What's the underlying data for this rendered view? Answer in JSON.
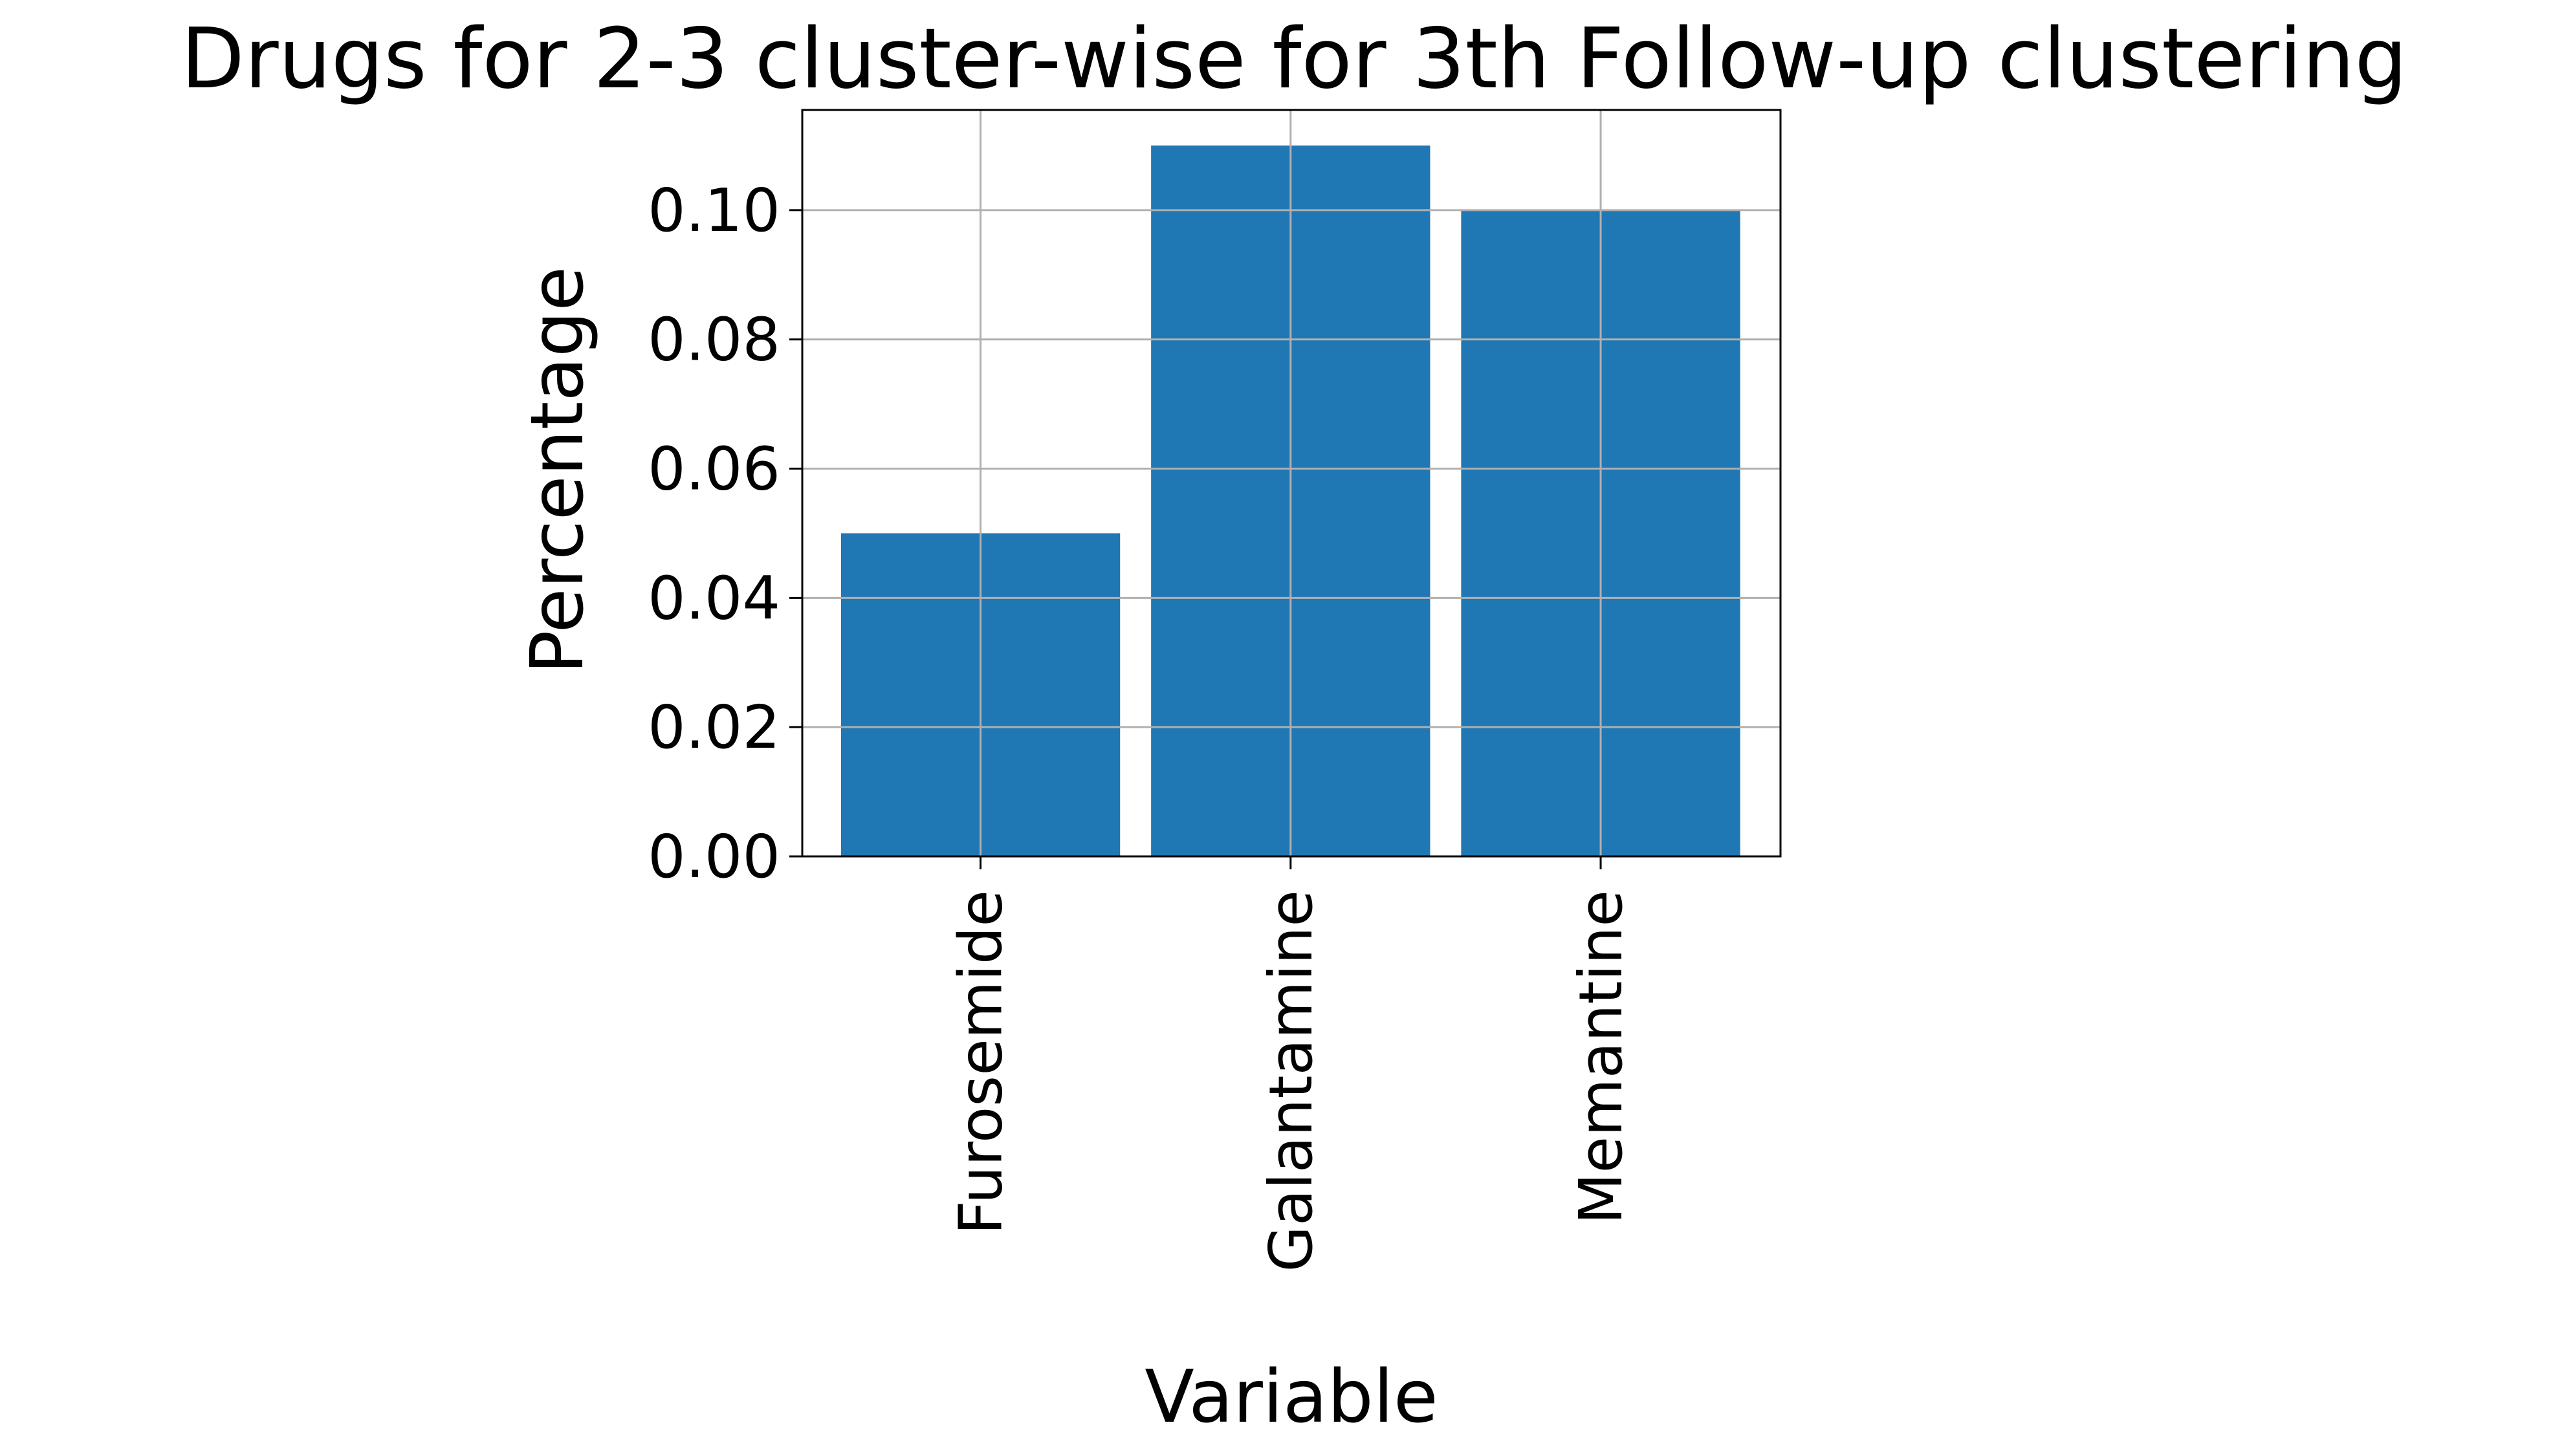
{
  "chart_data": {
    "type": "bar",
    "title": "Drugs for 2-3 cluster-wise for 3th Follow-up clustering",
    "xlabel": "Variable",
    "ylabel": "Percentage",
    "categories": [
      "Furosemide",
      "Galantamine",
      "Memantine"
    ],
    "values": [
      0.05,
      0.11,
      0.1
    ],
    "ylim": [
      0,
      0.1155
    ],
    "yticks": [
      "0.00",
      "0.02",
      "0.04",
      "0.06",
      "0.08",
      "0.10"
    ],
    "grid": true,
    "bar_color": "#1f77b4",
    "grid_color": "#b0b0b0"
  }
}
